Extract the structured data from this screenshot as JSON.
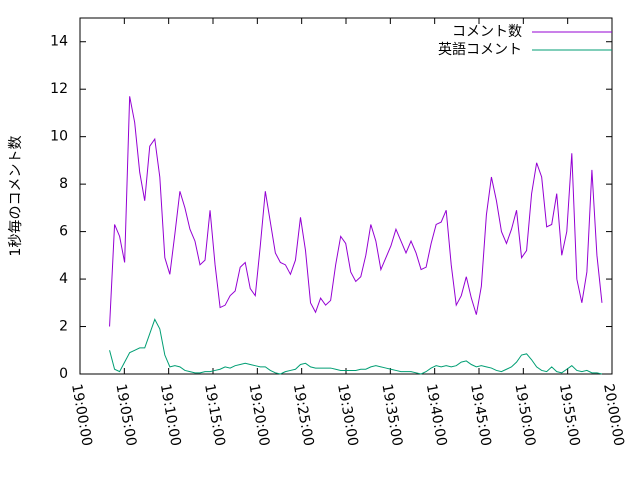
{
  "chart_data": {
    "type": "line",
    "y_label": "1秒毎のコメント数",
    "x": [
      "19:03:20",
      "19:03:54",
      "19:04:28",
      "19:05:02",
      "19:05:36",
      "19:06:10",
      "19:06:44",
      "19:07:18",
      "19:07:52",
      "19:08:26",
      "19:09:00",
      "19:09:34",
      "19:10:08",
      "19:10:42",
      "19:11:16",
      "19:11:50",
      "19:12:24",
      "19:12:58",
      "19:13:32",
      "19:14:06",
      "19:14:40",
      "19:15:14",
      "19:15:48",
      "19:16:22",
      "19:16:56",
      "19:17:30",
      "19:18:04",
      "19:18:38",
      "19:19:12",
      "19:19:46",
      "19:20:20",
      "19:20:54",
      "19:21:28",
      "19:22:02",
      "19:22:36",
      "19:23:10",
      "19:23:44",
      "19:24:18",
      "19:24:52",
      "19:25:26",
      "19:26:00",
      "19:26:34",
      "19:27:08",
      "19:27:42",
      "19:28:16",
      "19:28:50",
      "19:29:24",
      "19:29:58",
      "19:30:32",
      "19:31:06",
      "19:31:40",
      "19:32:14",
      "19:32:48",
      "19:33:22",
      "19:33:56",
      "19:34:30",
      "19:35:04",
      "19:35:38",
      "19:36:12",
      "19:36:46",
      "19:37:20",
      "19:37:54",
      "19:38:28",
      "19:39:02",
      "19:39:36",
      "19:40:10",
      "19:40:44",
      "19:41:18",
      "19:41:52",
      "19:42:26",
      "19:43:00",
      "19:43:34",
      "19:44:08",
      "19:44:42",
      "19:45:16",
      "19:45:50",
      "19:46:24",
      "19:46:58",
      "19:47:32",
      "19:48:06",
      "19:48:40",
      "19:49:14",
      "19:49:48",
      "19:50:22",
      "19:50:56",
      "19:51:30",
      "19:52:04",
      "19:52:38",
      "19:53:12",
      "19:53:46",
      "19:54:20",
      "19:54:54",
      "19:55:28",
      "19:56:02",
      "19:56:36",
      "19:57:10",
      "19:57:44",
      "19:58:18",
      "19:58:52"
    ],
    "series": [
      {
        "name": "コメント数",
        "color": "#9400d3",
        "values": [
          2.0,
          6.3,
          5.8,
          4.7,
          11.7,
          10.6,
          8.5,
          7.3,
          9.6,
          9.9,
          8.3,
          4.9,
          4.2,
          5.9,
          7.7,
          7.0,
          6.1,
          5.6,
          4.6,
          4.8,
          6.9,
          4.6,
          2.8,
          2.9,
          3.3,
          3.5,
          4.5,
          4.7,
          3.6,
          3.3,
          5.4,
          7.7,
          6.4,
          5.1,
          4.7,
          4.6,
          4.2,
          4.8,
          6.6,
          5.2,
          3.0,
          2.6,
          3.2,
          2.9,
          3.1,
          4.6,
          5.8,
          5.5,
          4.3,
          3.9,
          4.1,
          5.0,
          6.3,
          5.6,
          4.4,
          4.9,
          5.4,
          6.1,
          5.6,
          5.1,
          5.6,
          5.1,
          4.4,
          4.5,
          5.5,
          6.3,
          6.4,
          6.9,
          4.6,
          2.9,
          3.3,
          4.1,
          3.2,
          2.5,
          3.7,
          6.7,
          8.3,
          7.3,
          6.0,
          5.5,
          6.1,
          6.9,
          4.9,
          5.2,
          7.6,
          8.9,
          8.3,
          6.2,
          6.3,
          7.6,
          5.0,
          6.0,
          9.3,
          4.0,
          3.0,
          4.3,
          8.6,
          5.0,
          3.0
        ]
      },
      {
        "name": "英語コメント",
        "color": "#009e73",
        "values": [
          1.0,
          0.2,
          0.1,
          0.5,
          0.9,
          1.0,
          1.1,
          1.1,
          1.7,
          2.3,
          1.9,
          0.8,
          0.3,
          0.35,
          0.3,
          0.15,
          0.1,
          0.05,
          0.05,
          0.1,
          0.1,
          0.15,
          0.2,
          0.3,
          0.25,
          0.35,
          0.4,
          0.45,
          0.4,
          0.35,
          0.3,
          0.3,
          0.15,
          0.05,
          0.0,
          0.1,
          0.15,
          0.2,
          0.4,
          0.45,
          0.3,
          0.25,
          0.25,
          0.25,
          0.25,
          0.2,
          0.15,
          0.15,
          0.15,
          0.15,
          0.2,
          0.2,
          0.3,
          0.35,
          0.3,
          0.25,
          0.2,
          0.15,
          0.1,
          0.1,
          0.1,
          0.05,
          0.0,
          0.1,
          0.25,
          0.35,
          0.3,
          0.35,
          0.3,
          0.35,
          0.5,
          0.55,
          0.4,
          0.3,
          0.35,
          0.3,
          0.25,
          0.15,
          0.1,
          0.2,
          0.3,
          0.5,
          0.8,
          0.85,
          0.6,
          0.3,
          0.15,
          0.1,
          0.3,
          0.1,
          0.05,
          0.2,
          0.35,
          0.15,
          0.1,
          0.15,
          0.05,
          0.05,
          0.0
        ]
      }
    ],
    "xlim": [
      "19:00:00",
      "20:00:00"
    ],
    "xticks": [
      "19:00:00",
      "19:05:00",
      "19:10:00",
      "19:15:00",
      "19:20:00",
      "19:25:00",
      "19:30:00",
      "19:35:00",
      "19:40:00",
      "19:45:00",
      "19:50:00",
      "19:55:00",
      "20:00:00"
    ],
    "ylim": [
      0,
      15
    ],
    "yticks": [
      0,
      2,
      4,
      6,
      8,
      10,
      12,
      14
    ],
    "legend": "top-right"
  }
}
